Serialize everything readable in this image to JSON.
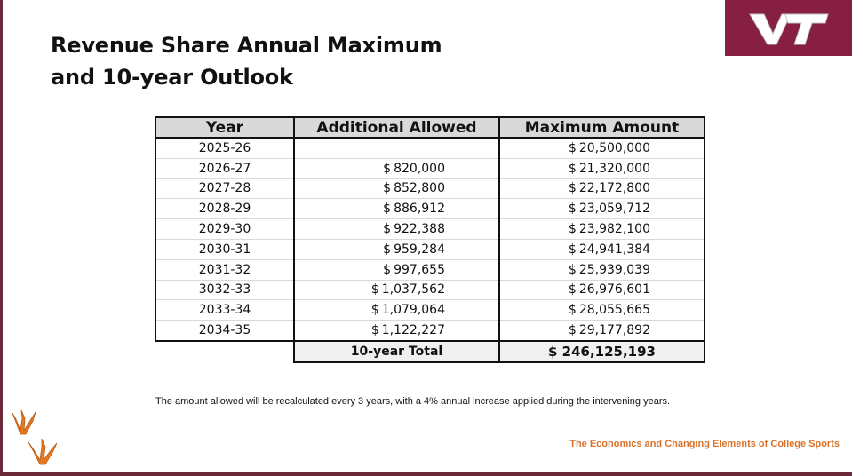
{
  "slide": {
    "title_line1": "Revenue Share Annual Maximum",
    "title_line2": "and 10-year Outlook",
    "logo_text": "VT",
    "footnote": "The amount allowed will be recalculated every 3 years, with a 4% annual increase applied during the intervening years.",
    "footer_caption": "The Economics and Changing Elements of College Sports"
  },
  "table": {
    "headers": [
      "Year",
      "Additional Allowed",
      "Maximum Amount"
    ],
    "rows": [
      {
        "year": "2025-26",
        "add_cur": "",
        "add": "",
        "max_cur": "$",
        "max": "20,500,000"
      },
      {
        "year": "2026-27",
        "add_cur": "$",
        "add": "820,000",
        "max_cur": "$",
        "max": "21,320,000"
      },
      {
        "year": "2027-28",
        "add_cur": "$",
        "add": "852,800",
        "max_cur": "$",
        "max": "22,172,800"
      },
      {
        "year": "2028-29",
        "add_cur": "$",
        "add": "886,912",
        "max_cur": "$",
        "max": "23,059,712"
      },
      {
        "year": "2029-30",
        "add_cur": "$",
        "add": "922,388",
        "max_cur": "$",
        "max": "23,982,100"
      },
      {
        "year": "2030-31",
        "add_cur": "$",
        "add": "959,284",
        "max_cur": "$",
        "max": "24,941,384"
      },
      {
        "year": "2031-32",
        "add_cur": "$",
        "add": "997,655",
        "max_cur": "$",
        "max": "25,939,039"
      },
      {
        "year": "3032-33",
        "add_cur": "$",
        "add": "1,037,562",
        "max_cur": "$",
        "max": "26,976,601"
      },
      {
        "year": "2033-34",
        "add_cur": "$",
        "add": "1,079,064",
        "max_cur": "$",
        "max": "28,055,665"
      },
      {
        "year": "2034-35",
        "add_cur": "$",
        "add": "1,122,227",
        "max_cur": "$",
        "max": "29,177,892"
      }
    ],
    "total_label": "10-year Total",
    "total_value": "$ 246,125,193"
  },
  "colors": {
    "brand_maroon": "#861f41",
    "footer_orange": "#d9722b",
    "header_gray": "#d9d9d9"
  },
  "icons": [
    "vt-logo",
    "turkey-foot-icon"
  ]
}
